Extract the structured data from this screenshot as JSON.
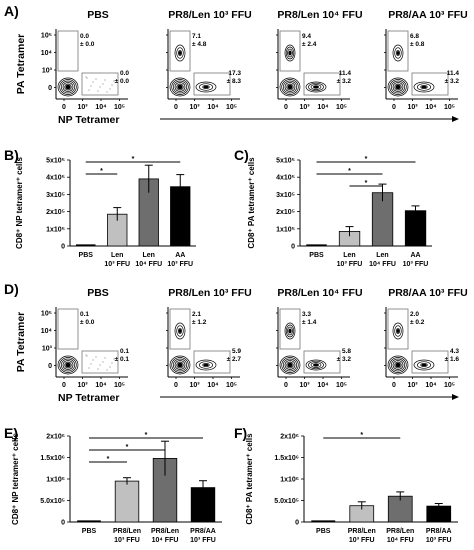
{
  "figure": {
    "panel_letters": [
      "A)",
      "B)",
      "C)",
      "D)",
      "E)",
      "F)"
    ],
    "pa_axis_label": "PA Tetramer",
    "np_axis_label": "NP Tetramer",
    "facs_headers": [
      "PBS",
      "PR8/Len 10³ FFU",
      "PR8/Len 10⁴ FFU",
      "PR8/AA 10³ FFU"
    ],
    "facs_x_ticks": [
      "0",
      "10³",
      "10⁴",
      "10⁵"
    ],
    "facs_y_ticks": [
      "10⁵",
      "10⁴",
      "10³",
      "0"
    ],
    "facs_a": [
      {
        "top": [
          "0.0",
          "± 0.0"
        ],
        "right": [
          "0.0",
          "± 0.0"
        ]
      },
      {
        "top": [
          "7.1",
          "± 4.8"
        ],
        "right": [
          "17.3",
          "± 8.3"
        ]
      },
      {
        "top": [
          "9.4",
          "± 2.4"
        ],
        "right": [
          "11.4",
          "± 3.2"
        ]
      },
      {
        "top": [
          "6.8",
          "± 0.8"
        ],
        "right": [
          "11.4",
          "± 3.2"
        ]
      }
    ],
    "facs_d": [
      {
        "top": [
          "0.1",
          "± 0.0"
        ],
        "right": [
          "0.1",
          "± 0.1"
        ]
      },
      {
        "top": [
          "2.1",
          "± 1.2"
        ],
        "right": [
          "5.9",
          "± 2.7"
        ]
      },
      {
        "top": [
          "3.3",
          "± 1.4"
        ],
        "right": [
          "5.8",
          "± 3.2"
        ]
      },
      {
        "top": [
          "2.0",
          "± 0.2"
        ],
        "right": [
          "4.3",
          "± 1.6"
        ]
      }
    ]
  },
  "chart_data": [
    {
      "panel": "B)",
      "type": "bar",
      "ylabel": "CD8⁺ NP tetramer⁺ cells",
      "ylim": [
        0,
        500000
      ],
      "yticks": [
        "0",
        "1x10⁵",
        "2x10⁵",
        "3x10⁵",
        "4x10⁵",
        "5x10⁵"
      ],
      "categories": [
        [
          "PBS"
        ],
        [
          "Len",
          "10³ FFU"
        ],
        [
          "Len",
          "10⁴ FFU"
        ],
        [
          "AA",
          "10³ FFU"
        ]
      ],
      "values": [
        0,
        185000,
        390000,
        345000
      ],
      "errors": [
        0,
        38000,
        80000,
        70000
      ],
      "colors": [
        "#ffffff",
        "#c0c0c0",
        "#6e6e6e",
        "#000000"
      ],
      "significance": [
        [
          "*",
          0,
          3
        ],
        [
          "*",
          0,
          1
        ]
      ]
    },
    {
      "panel": "C)",
      "type": "bar",
      "ylabel": "CD8⁺ PA tetramer⁺ cells",
      "ylim": [
        0,
        500000
      ],
      "yticks": [
        "0",
        "1x10⁵",
        "2x10⁵",
        "3x10⁵",
        "4x10⁵",
        "5x10⁵"
      ],
      "categories": [
        [
          "PBS"
        ],
        [
          "Len",
          "10³ FFU"
        ],
        [
          "Len",
          "10⁴ FFU"
        ],
        [
          "AA",
          "10³ FFU"
        ]
      ],
      "values": [
        0,
        85000,
        310000,
        205000
      ],
      "errors": [
        0,
        28000,
        50000,
        28000
      ],
      "colors": [
        "#ffffff",
        "#c0c0c0",
        "#6e6e6e",
        "#000000"
      ],
      "significance": [
        [
          "*",
          0,
          3
        ],
        [
          "*",
          0,
          2
        ],
        [
          "*",
          1,
          2
        ]
      ]
    },
    {
      "panel": "E)",
      "type": "bar",
      "ylabel": "CD8⁺ NP tetramer⁺ cells",
      "ylim": [
        0,
        2000000
      ],
      "yticks": [
        "0",
        "5.0x10⁵",
        "1x10⁶",
        "1.5x10⁶",
        "2x10⁶"
      ],
      "categories": [
        [
          "PBS"
        ],
        [
          "PR8/Len",
          "10³ FFU"
        ],
        [
          "PR8/Len",
          "10⁴ FFU"
        ],
        [
          "PR8/AA",
          "10³ FFU"
        ]
      ],
      "values": [
        0,
        950000,
        1480000,
        800000
      ],
      "errors": [
        0,
        80000,
        400000,
        160000
      ],
      "colors": [
        "#ffffff",
        "#c0c0c0",
        "#6e6e6e",
        "#000000"
      ],
      "significance": [
        [
          "*",
          0,
          3
        ],
        [
          "*",
          0,
          2
        ],
        [
          "*",
          0,
          1
        ]
      ]
    },
    {
      "panel": "F)",
      "type": "bar",
      "ylabel": "CD8⁺ PA tetramer⁺ cells",
      "ylim": [
        0,
        2000000
      ],
      "yticks": [
        "0",
        "5.0x10⁵",
        "1x10⁶",
        "1.5x10⁶",
        "2x10⁶"
      ],
      "categories": [
        [
          "PBS"
        ],
        [
          "PR8/Len",
          "10³ FFU"
        ],
        [
          "PR8/Len",
          "10⁴ FFU"
        ],
        [
          "PR8/AA",
          "10³ FFU"
        ]
      ],
      "values": [
        0,
        380000,
        600000,
        370000
      ],
      "errors": [
        0,
        90000,
        100000,
        60000
      ],
      "colors": [
        "#ffffff",
        "#c0c0c0",
        "#6e6e6e",
        "#000000"
      ],
      "significance": [
        [
          "*",
          0,
          2
        ]
      ]
    }
  ]
}
